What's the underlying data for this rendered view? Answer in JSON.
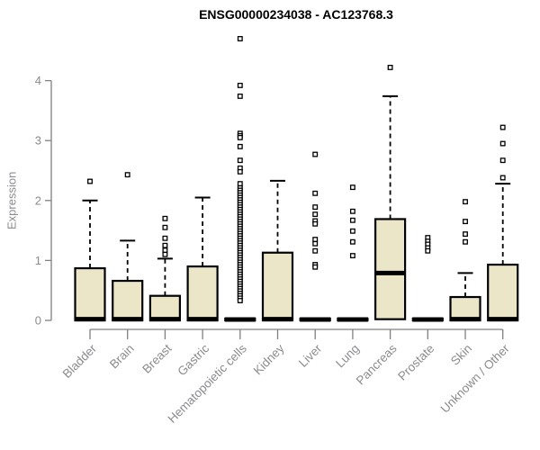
{
  "chart_data": {
    "type": "boxplot",
    "title": "ENSG00000234038 - AC123768.3",
    "ylabel": "Expression",
    "xlabel": "",
    "y_ticks": [
      0,
      1,
      2,
      3,
      4
    ],
    "ylim": [
      0,
      4.8
    ],
    "grid": false,
    "legend": null,
    "box_fill": "#ECE6C9",
    "box_stroke": "#000000",
    "axis_color": "#808080",
    "label_color": "#8B8B90",
    "categories": [
      "Bladder",
      "Brain",
      "Breast",
      "Gastric",
      "Hematopoietic cells",
      "Kidney",
      "Liver",
      "Lung",
      "Pancreas",
      "Prostate",
      "Skin",
      "Unknown / Other"
    ],
    "boxes": [
      {
        "category": "Bladder",
        "q1": 0,
        "median": 0.02,
        "q3": 0.87,
        "whisker_low": 0,
        "whisker_high": 2.0,
        "outliers": [
          2.32
        ]
      },
      {
        "category": "Brain",
        "q1": 0,
        "median": 0.02,
        "q3": 0.66,
        "whisker_low": 0,
        "whisker_high": 1.33,
        "outliers": [
          2.43
        ]
      },
      {
        "category": "Breast",
        "q1": 0,
        "median": 0.02,
        "q3": 0.41,
        "whisker_low": 0,
        "whisker_high": 1.03,
        "outliers": [
          1.7,
          1.55,
          1.37,
          1.25,
          1.17,
          1.1
        ]
      },
      {
        "category": "Gastric",
        "q1": 0,
        "median": 0.02,
        "q3": 0.9,
        "whisker_low": 0,
        "whisker_high": 2.05,
        "outliers": []
      },
      {
        "category": "Hematopoietic cells",
        "q1": 0,
        "median": 0.015,
        "q3": 0.03,
        "whisker_low": 0,
        "whisker_high": 0.03,
        "outliers": [
          4.7,
          3.92,
          3.74,
          3.12,
          3.08,
          3.05,
          2.9,
          2.67,
          2.54,
          2.48,
          2.28,
          2.21,
          2.17,
          2.13,
          2.09,
          2.05,
          2.01,
          1.97,
          1.93,
          1.89,
          1.85,
          1.81,
          1.77,
          1.73,
          1.69,
          1.65,
          1.61,
          1.57,
          1.53,
          1.49,
          1.45,
          1.41,
          1.37,
          1.33,
          1.29,
          1.25,
          1.21,
          1.17,
          1.13,
          1.09,
          1.05,
          1.01,
          0.97,
          0.93,
          0.89,
          0.85,
          0.81,
          0.77,
          0.73,
          0.69,
          0.65,
          0.61,
          0.57,
          0.53,
          0.49,
          0.45,
          0.41,
          0.37,
          0.33
        ]
      },
      {
        "category": "Kidney",
        "q1": 0,
        "median": 0.02,
        "q3": 1.13,
        "whisker_low": 0,
        "whisker_high": 2.33,
        "outliers": []
      },
      {
        "category": "Liver",
        "q1": 0,
        "median": 0.015,
        "q3": 0.03,
        "whisker_low": 0,
        "whisker_high": 0.03,
        "outliers": [
          2.77,
          2.12,
          1.89,
          1.77,
          1.66,
          1.61,
          1.35,
          1.28,
          1.16,
          0.93,
          0.89
        ]
      },
      {
        "category": "Lung",
        "q1": 0,
        "median": 0.015,
        "q3": 0.03,
        "whisker_low": 0,
        "whisker_high": 0.03,
        "outliers": [
          2.22,
          1.82,
          1.67,
          1.49,
          1.31,
          1.08
        ]
      },
      {
        "category": "Pancreas",
        "q1": 0.02,
        "median": 0.79,
        "q3": 1.69,
        "whisker_low": 0.02,
        "whisker_high": 3.74,
        "outliers": [
          4.22
        ]
      },
      {
        "category": "Prostate",
        "q1": 0,
        "median": 0.015,
        "q3": 0.03,
        "whisker_low": 0,
        "whisker_high": 0.03,
        "outliers": [
          1.38,
          1.32,
          1.27,
          1.21,
          1.16
        ]
      },
      {
        "category": "Skin",
        "q1": 0,
        "median": 0.02,
        "q3": 0.39,
        "whisker_low": 0,
        "whisker_high": 0.79,
        "outliers": [
          1.98,
          1.65,
          1.44,
          1.31
        ]
      },
      {
        "category": "Unknown / Other",
        "q1": 0,
        "median": 0.02,
        "q3": 0.93,
        "whisker_low": 0,
        "whisker_high": 2.28,
        "outliers": [
          2.38,
          2.67,
          2.95,
          3.22
        ]
      }
    ]
  }
}
